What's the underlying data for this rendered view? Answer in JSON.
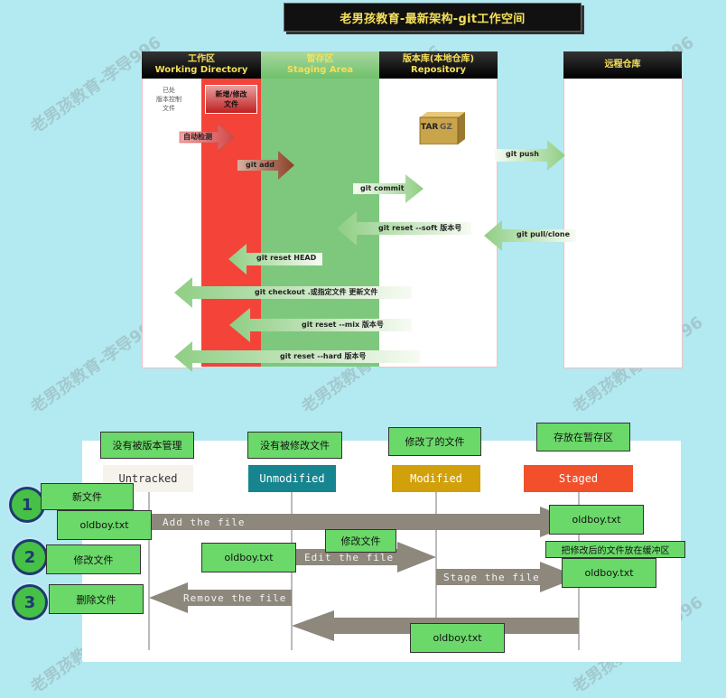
{
  "title": "老男孩教育-最新架构-git工作空间",
  "watermark": "老男孩教育-李导996",
  "columns": {
    "working": {
      "zh": "工作区",
      "en": "Working Directory"
    },
    "staging": {
      "zh": "暂存区",
      "en": "Staging Area"
    },
    "repo": {
      "zh": "版本库(本地仓库)",
      "en": "Repository"
    },
    "remote": {
      "zh": "远程仓库"
    }
  },
  "working_notes": {
    "tracked": "已处\n版本控制\n文件",
    "new_file": "新增/修改\n文件",
    "auto_detect": "自动检测"
  },
  "archive_icon": {
    "left": "TAR",
    "right": "GZ"
  },
  "commands": {
    "add": "git add",
    "commit": "git commit",
    "push": "git push",
    "reset_soft": "git reset --soft 版本号",
    "pull": "git pull/clone",
    "reset_head": "git reset HEAD",
    "checkout": "git  checkout  .或指定文件 更新文件",
    "reset_mix": "git reset --mix 版本号",
    "reset_hard": "git reset --hard    版本号"
  },
  "lifecycle": {
    "states": {
      "untracked": "Untracked",
      "unmodified": "Unmodified",
      "modified": "Modified",
      "staged": "Staged"
    },
    "state_labels": {
      "untracked": "没有被版本管理",
      "unmodified": "没有被修改文件",
      "modified": "修改了的文件",
      "staged": "存放在暂存区"
    },
    "steps": [
      {
        "num": "1",
        "label": "新文件"
      },
      {
        "num": "2",
        "label": "修改文件"
      },
      {
        "num": "3",
        "label": "删除文件"
      }
    ],
    "actions": {
      "add": "Add the file",
      "edit": "Edit the file",
      "stage": "Stage the file",
      "remove": "Remove the file"
    },
    "notes": {
      "modify": "修改文件",
      "stage_note": "把修改后的文件放在缓冲区"
    },
    "file": "oldboy.txt"
  },
  "colors": {
    "background": "#b3e9f0",
    "working_red": "#f4443a",
    "staging_green": "#7ec87e",
    "label_green": "#6bd86a",
    "unmodified": "#16858f",
    "modified": "#d1a00a",
    "staged": "#f2502b",
    "flow_arrow": "#8d877c"
  }
}
